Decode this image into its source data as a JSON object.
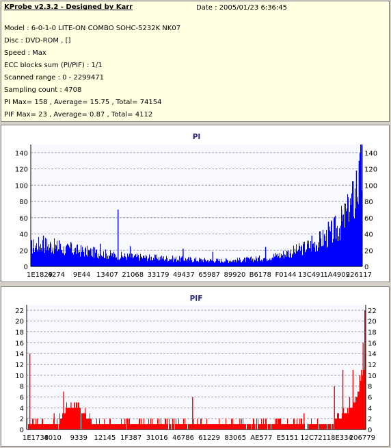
{
  "app": {
    "title": "KProbe v2.3.2 - Designed by Karr",
    "date": "Date : 2005/01/23 6:36:45"
  },
  "info_lines": [
    "Model : 6-0-1-0 LITE-ON COMBO SOHC-5232K NK07",
    "Disc : DVD-ROM ,  []",
    "Speed : Max",
    "ECC blocks sum (PI/PIF) : 1/1",
    "Scanned range : 0 - 2299471",
    "Sampling count : 4708",
    "PI Max= 158 , Average= 15.75 , Total= 74154",
    "PIF Max= 23 , Average= 0.87 , Total= 4112"
  ],
  "chart_data": [
    {
      "type": "bar",
      "title": "PI",
      "color": "#0000ff",
      "ylim": [
        0,
        150
      ],
      "yticks": [
        "0",
        "20",
        "40",
        "60",
        "80",
        "100",
        "120",
        "140"
      ],
      "xtick_labels": [
        "1E1829",
        "4274",
        "9E44",
        "13407",
        "21068",
        "33179",
        "49437",
        "65987",
        "89920",
        "B6178",
        "F0144",
        "13C491",
        "1A4909",
        "226117"
      ],
      "grid": true,
      "profile": [
        [
          0,
          26
        ],
        [
          0.03,
          30
        ],
        [
          0.06,
          28
        ],
        [
          0.1,
          23
        ],
        [
          0.15,
          21
        ],
        [
          0.2,
          18
        ],
        [
          0.25,
          15
        ],
        [
          0.3,
          13
        ],
        [
          0.35,
          12
        ],
        [
          0.4,
          11
        ],
        [
          0.45,
          10
        ],
        [
          0.5,
          9
        ],
        [
          0.55,
          8
        ],
        [
          0.6,
          8
        ],
        [
          0.65,
          9
        ],
        [
          0.7,
          11
        ],
        [
          0.75,
          15
        ],
        [
          0.8,
          21
        ],
        [
          0.85,
          29
        ],
        [
          0.9,
          41
        ],
        [
          0.93,
          53
        ],
        [
          0.96,
          72
        ],
        [
          0.98,
          95
        ],
        [
          1.0,
          125
        ]
      ],
      "spikes": [
        [
          0.037,
          38
        ],
        [
          0.085,
          32
        ],
        [
          0.12,
          30
        ],
        [
          0.21,
          28
        ],
        [
          0.263,
          70
        ],
        [
          0.3,
          25
        ],
        [
          0.46,
          22
        ],
        [
          0.55,
          18
        ],
        [
          0.71,
          24
        ],
        [
          0.85,
          38
        ],
        [
          0.9,
          55
        ],
        [
          0.94,
          70
        ],
        [
          0.96,
          85
        ],
        [
          0.975,
          105
        ],
        [
          0.985,
          118
        ],
        [
          0.993,
          130
        ],
        [
          0.998,
          150
        ]
      ]
    },
    {
      "type": "bar",
      "title": "PIF",
      "color": "#ff0000",
      "ylim": [
        0,
        23
      ],
      "yticks": [
        "0",
        "2",
        "4",
        "6",
        "8",
        "10",
        "12",
        "14",
        "16",
        "18",
        "20",
        "22"
      ],
      "xtick_labels": [
        "1E1738",
        "4010",
        "9339",
        "12145",
        "1F387",
        "31016",
        "46786",
        "61229",
        "83065",
        "AE577",
        "E5151",
        "12C721",
        "18E334",
        "206779"
      ],
      "grid": true,
      "profile": [
        [
          0,
          1
        ],
        [
          0.09,
          1
        ],
        [
          0.1,
          2
        ],
        [
          0.12,
          4
        ],
        [
          0.15,
          4
        ],
        [
          0.2,
          1
        ],
        [
          0.9,
          1
        ],
        [
          0.92,
          2
        ],
        [
          0.95,
          3
        ],
        [
          0.97,
          5
        ],
        [
          0.99,
          9
        ],
        [
          1.0,
          13
        ]
      ],
      "spikes": [
        [
          0.008,
          14
        ],
        [
          0.03,
          2
        ],
        [
          0.08,
          3
        ],
        [
          0.108,
          7
        ],
        [
          0.13,
          5
        ],
        [
          0.14,
          5
        ],
        [
          0.147,
          5
        ],
        [
          0.3,
          2
        ],
        [
          0.49,
          6
        ],
        [
          0.63,
          2
        ],
        [
          0.7,
          2
        ],
        [
          0.82,
          3
        ],
        [
          0.86,
          2
        ],
        [
          0.91,
          8
        ],
        [
          0.935,
          11
        ],
        [
          0.955,
          6
        ],
        [
          0.965,
          11
        ],
        [
          0.975,
          6
        ],
        [
          0.985,
          10
        ],
        [
          0.99,
          11
        ],
        [
          0.995,
          16
        ],
        [
          1.0,
          22
        ]
      ]
    }
  ]
}
